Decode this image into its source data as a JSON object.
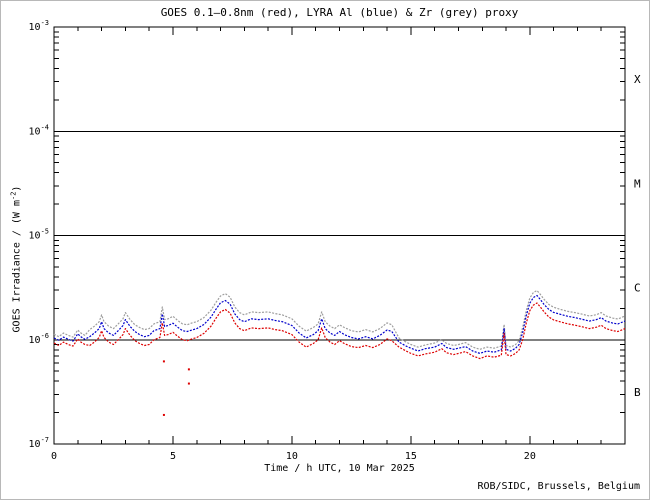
{
  "chart": {
    "title": "GOES 0.1–0.8nm (red), LYRA Al (blue) & Zr (grey) proxy",
    "x_axis_label": "Time / h UTC, 10 Mar 2025",
    "y_axis_label": {
      "prefix": "GOES Irradiance / (W m",
      "sup": "-2",
      "suffix": ")"
    },
    "credit": "ROB/SIDC, Brussels, Belgium",
    "flare_class_labels": [
      "X",
      "M",
      "C",
      "B"
    ],
    "colors": {
      "red": "#dd0000",
      "blue": "#0000cc",
      "grey": "#9e9e9e",
      "axis": "#000000",
      "background": "#ffffff"
    }
  },
  "chart_data": {
    "type": "line",
    "title": "GOES 0.1–0.8nm (red), LYRA Al (blue) & Zr (grey) proxy",
    "xlabel": "Time / h UTC, 10 Mar 2025",
    "ylabel": "GOES Irradiance / (W m-2)",
    "x_unit": "hours UTC",
    "date": "10 Mar 2025",
    "x_range": [
      0,
      24
    ],
    "y_scale": "log10",
    "y_range_exponents": [
      -7,
      -3
    ],
    "x_ticks": [
      {
        "value": 0,
        "label": "0"
      },
      {
        "value": 5,
        "label": "5"
      },
      {
        "value": 10,
        "label": "10"
      },
      {
        "value": 15,
        "label": "15"
      },
      {
        "value": 20,
        "label": "20"
      }
    ],
    "y_ticks": [
      {
        "base": "10",
        "exp": "-3"
      },
      {
        "base": "10",
        "exp": "-4"
      },
      {
        "base": "10",
        "exp": "-5"
      },
      {
        "base": "10",
        "exp": "-6"
      },
      {
        "base": "10",
        "exp": "-7"
      }
    ],
    "class_boundary_exponents": [
      -4,
      -5,
      -6
    ],
    "legend_position": "none",
    "grid": "flare-class boundary lines only",
    "values_unit": "1e-6 W m^-2",
    "x": [
      0.0,
      0.2,
      0.4,
      0.6,
      0.8,
      1.0,
      1.1,
      1.3,
      1.5,
      1.7,
      1.9,
      2.0,
      2.1,
      2.3,
      2.5,
      2.7,
      2.9,
      3.0,
      3.2,
      3.4,
      3.6,
      3.8,
      4.0,
      4.2,
      4.45,
      4.55,
      4.65,
      4.8,
      5.0,
      5.2,
      5.4,
      5.6,
      5.8,
      6.0,
      6.3,
      6.6,
      6.8,
      7.0,
      7.2,
      7.4,
      7.6,
      7.8,
      8.0,
      8.3,
      8.6,
      9.0,
      9.3,
      9.6,
      10.0,
      10.3,
      10.6,
      10.9,
      11.1,
      11.25,
      11.4,
      11.6,
      11.8,
      12.0,
      12.2,
      12.5,
      12.8,
      13.1,
      13.4,
      13.7,
      14.0,
      14.2,
      14.5,
      14.8,
      15.0,
      15.3,
      15.6,
      16.0,
      16.3,
      16.5,
      16.8,
      17.0,
      17.3,
      17.6,
      17.9,
      18.2,
      18.5,
      18.8,
      18.92,
      19.0,
      19.2,
      19.4,
      19.55,
      19.7,
      19.85,
      20.0,
      20.15,
      20.3,
      20.45,
      20.6,
      20.8,
      21.0,
      21.3,
      21.6,
      21.9,
      22.2,
      22.5,
      22.8,
      23.0,
      23.2,
      23.5,
      23.7,
      24.0
    ],
    "series": [
      {
        "name": "GOES 0.1-0.8nm",
        "color_key": "red",
        "values": [
          0.93,
          0.88,
          0.95,
          0.9,
          0.87,
          1.02,
          0.96,
          0.9,
          0.88,
          0.95,
          1.05,
          1.22,
          1.05,
          0.95,
          0.9,
          1.0,
          1.12,
          1.28,
          1.1,
          0.98,
          0.92,
          0.88,
          0.9,
          1.0,
          1.05,
          1.45,
          1.1,
          1.12,
          1.18,
          1.08,
          1.0,
          0.98,
          1.02,
          1.05,
          1.15,
          1.35,
          1.6,
          1.85,
          1.95,
          1.8,
          1.45,
          1.28,
          1.22,
          1.3,
          1.28,
          1.3,
          1.25,
          1.22,
          1.12,
          0.95,
          0.85,
          0.92,
          1.0,
          1.3,
          1.05,
          0.95,
          0.9,
          0.98,
          0.92,
          0.86,
          0.84,
          0.88,
          0.84,
          0.9,
          1.02,
          0.98,
          0.85,
          0.78,
          0.74,
          0.7,
          0.73,
          0.76,
          0.82,
          0.75,
          0.72,
          0.74,
          0.77,
          0.7,
          0.66,
          0.7,
          0.68,
          0.71,
          1.15,
          0.72,
          0.7,
          0.74,
          0.8,
          1.0,
          1.45,
          1.9,
          2.15,
          2.25,
          2.05,
          1.85,
          1.65,
          1.55,
          1.48,
          1.42,
          1.38,
          1.33,
          1.28,
          1.32,
          1.38,
          1.28,
          1.22,
          1.2,
          1.28
        ]
      },
      {
        "name": "LYRA Al proxy",
        "color_key": "blue",
        "values": [
          1.04,
          0.99,
          1.06,
          1.01,
          0.97,
          1.14,
          1.08,
          1.01,
          1.07,
          1.16,
          1.28,
          1.49,
          1.28,
          1.16,
          1.1,
          1.22,
          1.37,
          1.56,
          1.34,
          1.2,
          1.12,
          1.07,
          1.1,
          1.22,
          1.28,
          1.77,
          1.34,
          1.37,
          1.44,
          1.32,
          1.22,
          1.2,
          1.24,
          1.28,
          1.4,
          1.65,
          1.95,
          2.26,
          2.38,
          2.2,
          1.77,
          1.56,
          1.49,
          1.59,
          1.56,
          1.59,
          1.53,
          1.49,
          1.37,
          1.16,
          1.04,
          1.12,
          1.22,
          1.59,
          1.28,
          1.16,
          1.1,
          1.2,
          1.12,
          1.05,
          1.02,
          1.07,
          1.02,
          1.1,
          1.24,
          1.2,
          0.95,
          0.87,
          0.83,
          0.78,
          0.82,
          0.85,
          0.92,
          0.84,
          0.81,
          0.83,
          0.86,
          0.78,
          0.74,
          0.78,
          0.76,
          0.8,
          1.29,
          0.81,
          0.78,
          0.83,
          0.9,
          1.18,
          1.71,
          2.24,
          2.54,
          2.66,
          2.42,
          2.18,
          1.95,
          1.83,
          1.75,
          1.68,
          1.63,
          1.57,
          1.51,
          1.56,
          1.63,
          1.51,
          1.44,
          1.42,
          1.51
        ]
      },
      {
        "name": "LYRA Zr proxy",
        "color_key": "grey",
        "values": [
          1.13,
          1.07,
          1.16,
          1.1,
          1.06,
          1.24,
          1.17,
          1.1,
          1.25,
          1.35,
          1.49,
          1.73,
          1.49,
          1.35,
          1.28,
          1.42,
          1.59,
          1.82,
          1.56,
          1.39,
          1.31,
          1.25,
          1.28,
          1.42,
          1.49,
          2.06,
          1.56,
          1.59,
          1.68,
          1.53,
          1.42,
          1.39,
          1.45,
          1.49,
          1.63,
          1.92,
          2.27,
          2.63,
          2.77,
          2.56,
          2.06,
          1.82,
          1.73,
          1.85,
          1.82,
          1.85,
          1.78,
          1.73,
          1.59,
          1.35,
          1.21,
          1.31,
          1.42,
          1.85,
          1.49,
          1.35,
          1.28,
          1.39,
          1.31,
          1.22,
          1.19,
          1.25,
          1.19,
          1.28,
          1.45,
          1.39,
          1.04,
          0.95,
          0.9,
          0.85,
          0.89,
          0.93,
          1.0,
          0.92,
          0.88,
          0.9,
          0.94,
          0.85,
          0.81,
          0.85,
          0.83,
          0.87,
          1.4,
          0.88,
          0.85,
          0.9,
          0.98,
          1.32,
          1.91,
          2.51,
          2.84,
          2.97,
          2.71,
          2.44,
          2.18,
          2.05,
          1.95,
          1.87,
          1.82,
          1.76,
          1.69,
          1.74,
          1.82,
          1.69,
          1.61,
          1.58,
          1.69
        ]
      }
    ],
    "outliers": {
      "color_key": "red",
      "points": [
        [
          4.62,
          0.62
        ],
        [
          4.62,
          0.19
        ],
        [
          5.67,
          0.52
        ],
        [
          5.67,
          0.38
        ]
      ]
    }
  }
}
